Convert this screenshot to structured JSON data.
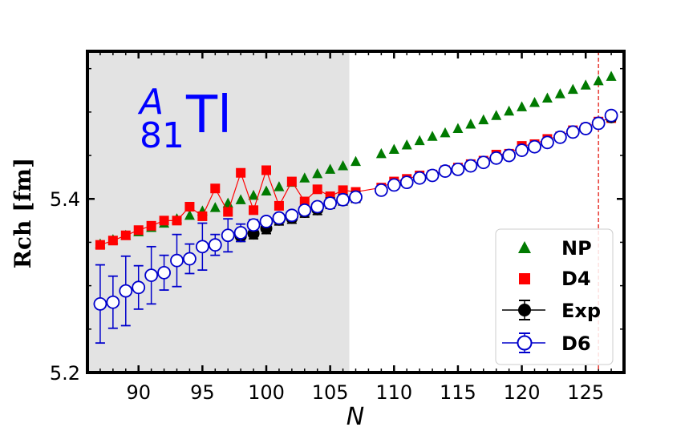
{
  "chart_data": {
    "type": "scatter",
    "title": "",
    "xlabel": "N",
    "ylabel": "Rch [fm]",
    "xlim": [
      86,
      128
    ],
    "ylim": [
      5.2,
      5.57
    ],
    "x_ticks": [
      90,
      95,
      100,
      105,
      110,
      115,
      120,
      125
    ],
    "y_ticks": [
      5.2,
      5.4
    ],
    "x_tick_labels": [
      "90",
      "95",
      "100",
      "105",
      "110",
      "115",
      "120",
      "125"
    ],
    "y_tick_labels": [
      "5.2",
      "5.4"
    ],
    "shaded_region": {
      "x_from": 86,
      "x_to": 106.5,
      "color": "#e3e3e3"
    },
    "vertical_line": {
      "x": 126,
      "color": "#e8372f",
      "style": "dashed"
    },
    "isotope": {
      "mass": "A",
      "proton_number": "81",
      "symbol": "Tl",
      "color": "#0000ff"
    },
    "legend": {
      "position": "lower-right",
      "entries": [
        "NP",
        "D4",
        "Exp",
        "D6"
      ]
    },
    "series": [
      {
        "name": "NP",
        "marker": "triangle",
        "color": "#007a00",
        "x": [
          87,
          88,
          89,
          90,
          91,
          92,
          93,
          94,
          95,
          96,
          97,
          98,
          99,
          100,
          101,
          102,
          103,
          104,
          105,
          106,
          107,
          109,
          110,
          111,
          112,
          113,
          114,
          115,
          116,
          117,
          118,
          119,
          120,
          121,
          122,
          123,
          124,
          125,
          126,
          127
        ],
        "y": [
          5.348,
          5.353,
          5.358,
          5.362,
          5.367,
          5.372,
          5.377,
          5.381,
          5.386,
          5.39,
          5.395,
          5.399,
          5.404,
          5.409,
          5.414,
          5.419,
          5.424,
          5.429,
          5.434,
          5.438,
          5.443,
          5.452,
          5.457,
          5.462,
          5.467,
          5.472,
          5.476,
          5.481,
          5.486,
          5.491,
          5.496,
          5.501,
          5.506,
          5.511,
          5.516,
          5.521,
          5.526,
          5.531,
          5.536,
          5.541
        ]
      },
      {
        "name": "D4",
        "marker": "square",
        "color": "#ff0000",
        "connected": true,
        "x": [
          87,
          88,
          89,
          90,
          91,
          92,
          93,
          94,
          95,
          96,
          97,
          98,
          99,
          100,
          101,
          102,
          103,
          104,
          105,
          106,
          107,
          109,
          110,
          111,
          112,
          113,
          114,
          115,
          116,
          117,
          118,
          119,
          120,
          121,
          122,
          123,
          124,
          125,
          126,
          127
        ],
        "y": [
          5.347,
          5.352,
          5.358,
          5.364,
          5.369,
          5.375,
          5.375,
          5.391,
          5.38,
          5.412,
          5.385,
          5.43,
          5.387,
          5.433,
          5.392,
          5.42,
          5.397,
          5.411,
          5.403,
          5.41,
          5.408,
          5.413,
          5.42,
          5.423,
          5.427,
          5.428,
          5.433,
          5.436,
          5.44,
          5.444,
          5.451,
          5.452,
          5.461,
          5.463,
          5.469,
          5.472,
          5.479,
          5.482,
          5.489,
          5.493
        ]
      },
      {
        "name": "Exp",
        "marker": "circle-filled",
        "color": "#000000",
        "x": [
          98,
          99,
          100,
          101,
          102,
          103,
          104,
          105,
          106,
          107,
          109,
          110,
          111,
          112,
          113,
          114,
          115,
          116,
          117,
          118,
          119,
          120,
          121,
          122,
          123,
          124,
          125,
          126,
          127
        ],
        "y": [
          5.357,
          5.36,
          5.366,
          5.376,
          5.378,
          5.385,
          5.388,
          5.395,
          5.399,
          5.402,
          5.41,
          5.416,
          5.419,
          5.424,
          5.427,
          5.432,
          5.434,
          5.438,
          5.442,
          5.447,
          5.45,
          5.456,
          5.46,
          5.465,
          5.471,
          5.477,
          5.481,
          5.487,
          5.494
        ],
        "yerr": [
          0.006,
          0.006,
          0.006,
          0.006,
          0.006,
          0.006,
          0.006,
          0.006,
          0.006,
          0.006,
          0.004,
          0.004,
          0.004,
          0.004,
          0.004,
          0.004,
          0.004,
          0.004,
          0.004,
          0.004,
          0.004,
          0.004,
          0.004,
          0.004,
          0.004,
          0.004,
          0.004,
          0.004,
          0.004
        ]
      },
      {
        "name": "D6",
        "marker": "circle-open",
        "color": "#0000cc",
        "x": [
          87,
          88,
          89,
          90,
          91,
          92,
          93,
          94,
          95,
          96,
          97,
          98,
          99,
          100,
          101,
          102,
          103,
          104,
          105,
          106,
          107,
          109,
          110,
          111,
          112,
          113,
          114,
          115,
          116,
          117,
          118,
          119,
          120,
          121,
          122,
          123,
          124,
          125,
          126,
          127
        ],
        "y": [
          5.279,
          5.281,
          5.294,
          5.298,
          5.312,
          5.315,
          5.329,
          5.331,
          5.345,
          5.347,
          5.358,
          5.361,
          5.37,
          5.374,
          5.378,
          5.381,
          5.387,
          5.391,
          5.395,
          5.399,
          5.402,
          5.41,
          5.416,
          5.419,
          5.424,
          5.427,
          5.432,
          5.434,
          5.438,
          5.442,
          5.447,
          5.45,
          5.456,
          5.46,
          5.465,
          5.471,
          5.477,
          5.481,
          5.487,
          5.496
        ],
        "yerr": [
          0.045,
          0.03,
          0.04,
          0.025,
          0.033,
          0.02,
          0.03,
          0.017,
          0.027,
          0.012,
          0.019,
          0.01,
          0.006,
          0.004,
          0.004,
          0.004,
          0.004,
          0.004,
          0.004,
          0.004,
          0.004,
          0.004,
          0.004,
          0.004,
          0.004,
          0.004,
          0.004,
          0.004,
          0.004,
          0.004,
          0.004,
          0.004,
          0.004,
          0.004,
          0.004,
          0.004,
          0.004,
          0.004,
          0.004,
          0.004
        ]
      }
    ]
  }
}
